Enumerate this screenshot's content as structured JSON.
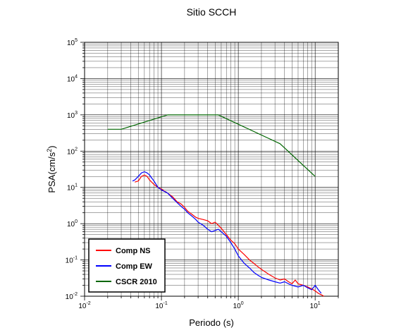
{
  "chart_data": {
    "type": "line",
    "title": "Sitio SCCH",
    "xlabel": "Periodo (s)",
    "ylabel_base": "PSA(cm/s",
    "ylabel_sup": "2",
    "ylabel_end": ")",
    "x_scale": "log",
    "y_scale": "log",
    "xlim": [
      0.01,
      20
    ],
    "ylim": [
      0.01,
      100000
    ],
    "grid": true,
    "legend_position": "bottom-left",
    "x_ticks": [
      {
        "value": 0.01,
        "base": "10",
        "exp": "-2"
      },
      {
        "value": 0.1,
        "base": "10",
        "exp": "-1"
      },
      {
        "value": 1,
        "base": "10",
        "exp": "0"
      },
      {
        "value": 10,
        "base": "10",
        "exp": "1"
      }
    ],
    "y_ticks": [
      {
        "value": 0.01,
        "base": "10",
        "exp": "-2"
      },
      {
        "value": 0.1,
        "base": "10",
        "exp": "-1"
      },
      {
        "value": 1,
        "base": "10",
        "exp": "0"
      },
      {
        "value": 10,
        "base": "10",
        "exp": "1"
      },
      {
        "value": 100,
        "base": "10",
        "exp": "2"
      },
      {
        "value": 1000,
        "base": "10",
        "exp": "3"
      },
      {
        "value": 10000,
        "base": "10",
        "exp": "4"
      },
      {
        "value": 100000,
        "base": "10",
        "exp": "5"
      }
    ],
    "series": [
      {
        "name": "Comp NS",
        "color": "#ff0000",
        "points": [
          [
            0.045,
            14
          ],
          [
            0.05,
            15
          ],
          [
            0.055,
            20
          ],
          [
            0.06,
            22
          ],
          [
            0.065,
            20
          ],
          [
            0.07,
            16
          ],
          [
            0.08,
            12
          ],
          [
            0.09,
            10
          ],
          [
            0.1,
            9
          ],
          [
            0.12,
            7
          ],
          [
            0.14,
            5.5
          ],
          [
            0.16,
            4
          ],
          [
            0.18,
            3.5
          ],
          [
            0.2,
            2.8
          ],
          [
            0.22,
            2.2
          ],
          [
            0.25,
            1.8
          ],
          [
            0.28,
            1.5
          ],
          [
            0.3,
            1.4
          ],
          [
            0.35,
            1.3
          ],
          [
            0.4,
            1.2
          ],
          [
            0.45,
            1.0
          ],
          [
            0.5,
            1.1
          ],
          [
            0.55,
            0.9
          ],
          [
            0.6,
            0.75
          ],
          [
            0.7,
            0.5
          ],
          [
            0.8,
            0.35
          ],
          [
            0.9,
            0.28
          ],
          [
            1.0,
            0.2
          ],
          [
            1.2,
            0.14
          ],
          [
            1.4,
            0.1
          ],
          [
            1.6,
            0.08
          ],
          [
            1.8,
            0.065
          ],
          [
            2.0,
            0.055
          ],
          [
            2.5,
            0.04
          ],
          [
            3.0,
            0.032
          ],
          [
            3.5,
            0.028
          ],
          [
            4.0,
            0.03
          ],
          [
            4.5,
            0.025
          ],
          [
            5.0,
            0.022
          ],
          [
            5.5,
            0.028
          ],
          [
            6.0,
            0.022
          ],
          [
            7.0,
            0.02
          ],
          [
            8.0,
            0.018
          ],
          [
            9.0,
            0.016
          ],
          [
            10.0,
            0.014
          ],
          [
            11.0,
            0.012
          ],
          [
            12.0,
            0.011
          ],
          [
            13.0,
            0.01
          ]
        ]
      },
      {
        "name": "Comp EW",
        "color": "#0000ff",
        "points": [
          [
            0.042,
            15
          ],
          [
            0.045,
            16
          ],
          [
            0.05,
            20
          ],
          [
            0.055,
            25
          ],
          [
            0.06,
            27
          ],
          [
            0.065,
            25
          ],
          [
            0.07,
            22
          ],
          [
            0.075,
            18
          ],
          [
            0.08,
            15
          ],
          [
            0.09,
            10
          ],
          [
            0.1,
            8.5
          ],
          [
            0.12,
            7
          ],
          [
            0.14,
            5
          ],
          [
            0.16,
            3.8
          ],
          [
            0.18,
            3
          ],
          [
            0.2,
            2.5
          ],
          [
            0.22,
            2
          ],
          [
            0.25,
            1.6
          ],
          [
            0.28,
            1.3
          ],
          [
            0.3,
            1.1
          ],
          [
            0.35,
            0.9
          ],
          [
            0.4,
            0.7
          ],
          [
            0.45,
            0.6
          ],
          [
            0.5,
            0.65
          ],
          [
            0.55,
            0.7
          ],
          [
            0.6,
            0.6
          ],
          [
            0.7,
            0.45
          ],
          [
            0.8,
            0.3
          ],
          [
            0.9,
            0.2
          ],
          [
            1.0,
            0.13
          ],
          [
            1.2,
            0.08
          ],
          [
            1.4,
            0.06
          ],
          [
            1.6,
            0.045
          ],
          [
            1.8,
            0.038
          ],
          [
            2.0,
            0.033
          ],
          [
            2.5,
            0.028
          ],
          [
            3.0,
            0.025
          ],
          [
            3.5,
            0.023
          ],
          [
            4.0,
            0.025
          ],
          [
            4.5,
            0.022
          ],
          [
            5.0,
            0.02
          ],
          [
            6.0,
            0.018
          ],
          [
            7.0,
            0.02
          ],
          [
            8.0,
            0.017
          ],
          [
            9.0,
            0.015
          ],
          [
            10.0,
            0.02
          ],
          [
            11.0,
            0.015
          ],
          [
            12.0,
            0.012
          ]
        ]
      },
      {
        "name": "CSCR 2010",
        "color": "#006600",
        "points": [
          [
            0.02,
            400
          ],
          [
            0.03,
            400
          ],
          [
            0.12,
            1000
          ],
          [
            0.55,
            1000
          ],
          [
            3.5,
            160
          ],
          [
            10.0,
            20
          ]
        ]
      }
    ]
  }
}
